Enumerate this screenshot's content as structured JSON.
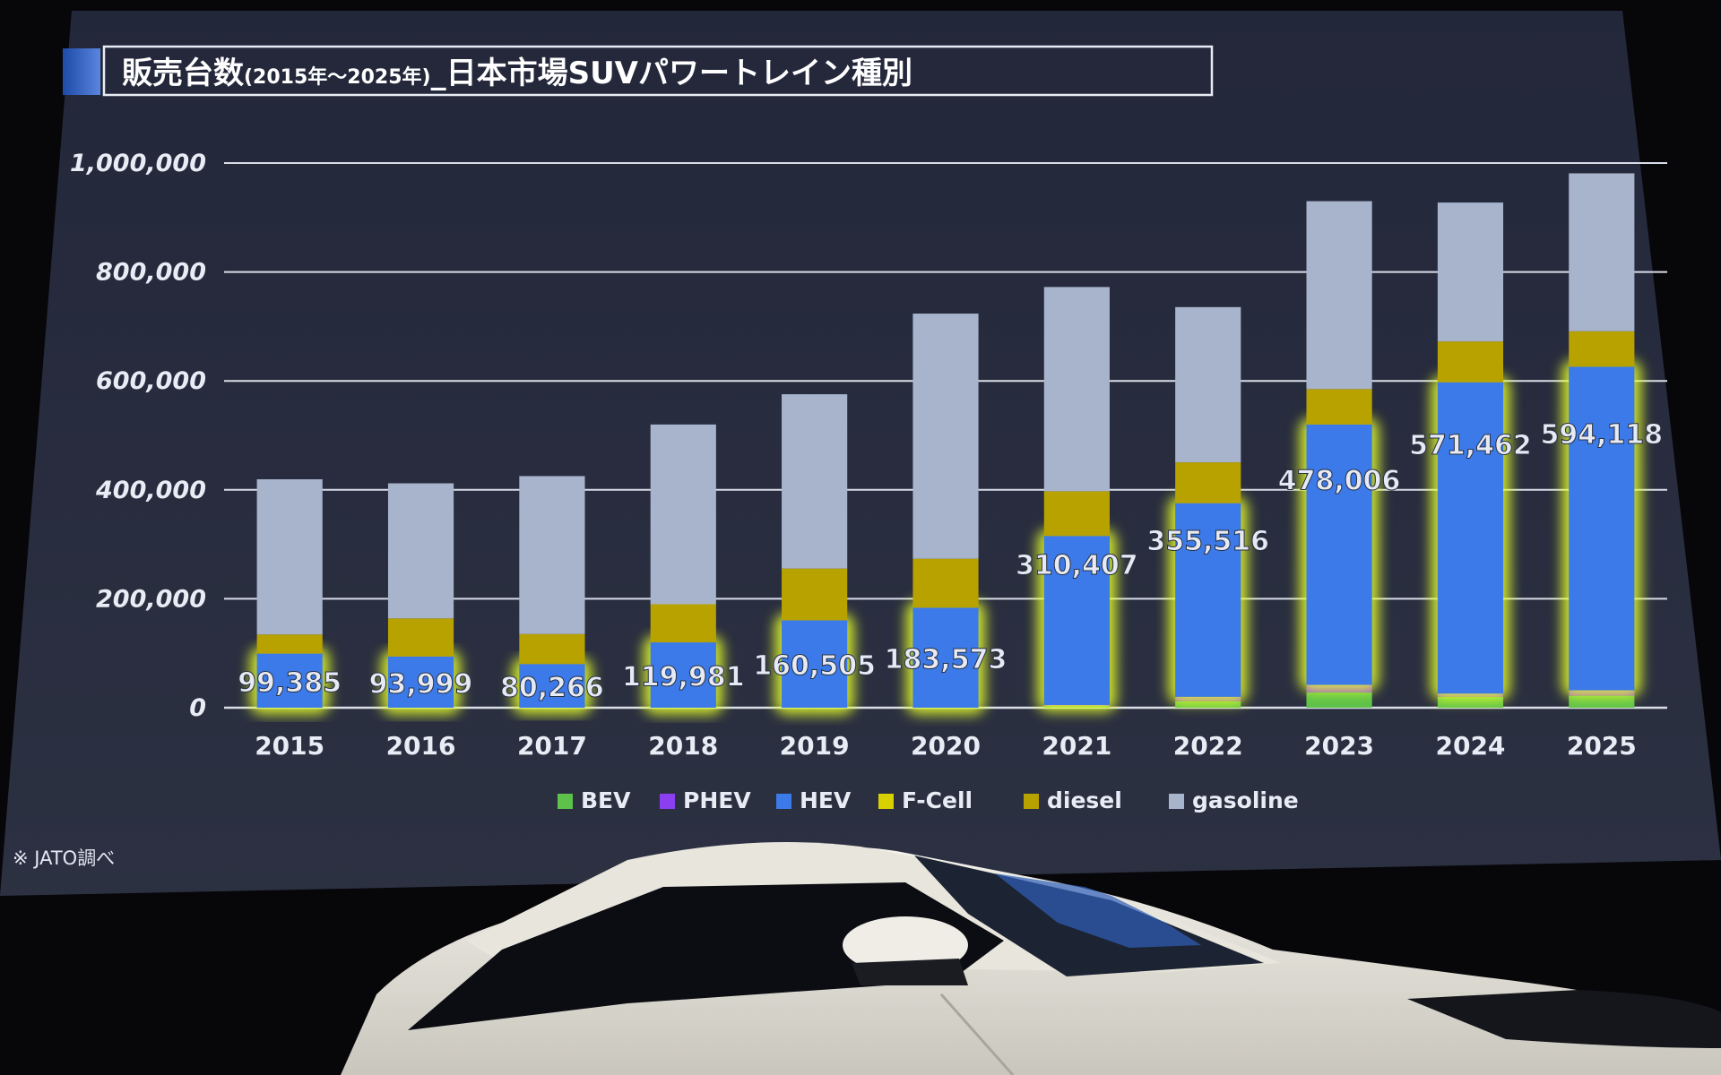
{
  "slide": {
    "title_main": "販売台数",
    "title_years": "(2015年～2025年)",
    "title_rest": "_日本市場SUVパワートレイン種別",
    "source_note": "※ JATO調べ"
  },
  "colors": {
    "BEV": "#5ec24a",
    "PHEV": "#8a3ff0",
    "HEV": "#3b7ae8",
    "F-Cell": "#d8d000",
    "diesel": "#b8a200",
    "gasoline": "#a8b4cc",
    "glow": "#e6ff2a",
    "background": "#262a3a"
  },
  "chart_data": {
    "type": "bar",
    "stacked": true,
    "title": "販売台数(2015年～2025年)_日本市場SUVパワートレイン種別",
    "categories": [
      "2015",
      "2016",
      "2017",
      "2018",
      "2019",
      "2020",
      "2021",
      "2022",
      "2023",
      "2024",
      "2025"
    ],
    "ylim": [
      0,
      1000000
    ],
    "yticks": [
      "0",
      "200,000",
      "400,000",
      "600,000",
      "800,000",
      "1,000,000"
    ],
    "grid": true,
    "legend_position": "bottom",
    "series": [
      {
        "name": "BEV",
        "values": [
          0,
          0,
          0,
          0,
          0,
          0,
          3000,
          12000,
          28000,
          20000,
          22000
        ]
      },
      {
        "name": "PHEV",
        "values": [
          0,
          0,
          0,
          0,
          0,
          0,
          2000,
          8000,
          14000,
          6000,
          10000
        ]
      },
      {
        "name": "HEV",
        "values": [
          99385,
          93999,
          80266,
          119981,
          160505,
          183573,
          310407,
          355516,
          478006,
          571462,
          594118
        ]
      },
      {
        "name": "F-Cell",
        "values": [
          0,
          0,
          0,
          0,
          0,
          0,
          0,
          0,
          0,
          0,
          0
        ]
      },
      {
        "name": "diesel",
        "values": [
          35000,
          70000,
          55000,
          70000,
          95000,
          90000,
          82000,
          75000,
          65000,
          75000,
          65000
        ]
      },
      {
        "name": "gasoline",
        "values": [
          285000,
          248000,
          290000,
          330000,
          320000,
          450000,
          375000,
          285000,
          345000,
          255000,
          290000
        ]
      }
    ],
    "data_labels": [
      "99,385",
      "93,999",
      "80,266",
      "119,981",
      "160,505",
      "183,573",
      "310,407",
      "355,516",
      "478,006",
      "571,462",
      "594,118"
    ],
    "highlighted_series": "HEV"
  }
}
